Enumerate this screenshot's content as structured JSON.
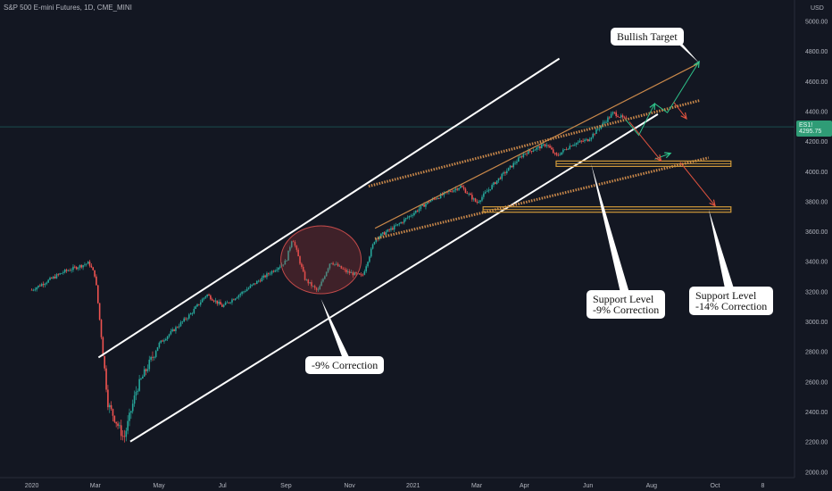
{
  "header": {
    "symbol_line": "S&P 500 E-mini Futures, 1D, CME_MINI",
    "currency": "USD",
    "last_price": "ES1! 4295.75"
  },
  "colors": {
    "background": "#131722",
    "up": "#26a69a",
    "down": "#ef5350",
    "channel": "#ffffff",
    "target_line": "#c9884a",
    "support": "#d19a3b",
    "bull_arrow": "#2ec28a",
    "bear_arrow": "#e0533f"
  },
  "annotations": {
    "bullish_target": "Bullish Target",
    "correction_past": "-9% Correction",
    "support1_line1": "Support Level",
    "support1_line2": "-9% Correction",
    "support2_line1": "Support Level",
    "support2_line2": "-14% Correction"
  },
  "chart_data": {
    "type": "candlestick",
    "title": "S&P 500 E-mini Futures, 1D, CME_MINI",
    "y_unit": "USD",
    "ylim": [
      1960,
      5140
    ],
    "yticks": [
      2000,
      2200,
      2400,
      2600,
      2800,
      3000,
      3200,
      3400,
      3600,
      3800,
      4000,
      4200,
      4400,
      4600,
      4800,
      5000
    ],
    "ytick_labels": [
      "2000.00",
      "2200.00",
      "2400.00",
      "2600.00",
      "2800.00",
      "3000.00",
      "3200.00",
      "3400.00",
      "3600.00",
      "3800.00",
      "4000.00",
      "4200.00",
      "4400.00",
      "4600.00",
      "4800.00",
      "5000.00"
    ],
    "x_axis_labels": [
      "2020",
      "Mar",
      "May",
      "Jul",
      "Sep",
      "Nov",
      "2021",
      "Mar",
      "Apr",
      "Jun",
      "Aug",
      "Oct",
      "8"
    ],
    "x_axis_positions": [
      0,
      2,
      4,
      6,
      8,
      10,
      12,
      14,
      15.5,
      17.5,
      19.5,
      21.5,
      23
    ],
    "price_path": [
      [
        0,
        3210
      ],
      [
        1,
        3330
      ],
      [
        1.8,
        3390
      ],
      [
        2,
        3300
      ],
      [
        2.4,
        2450
      ],
      [
        2.9,
        2220
      ],
      [
        3.3,
        2550
      ],
      [
        4,
        2850
      ],
      [
        5,
        3050
      ],
      [
        5.5,
        3180
      ],
      [
        6,
        3100
      ],
      [
        7,
        3250
      ],
      [
        8,
        3400
      ],
      [
        8.2,
        3560
      ],
      [
        8.6,
        3280
      ],
      [
        9,
        3200
      ],
      [
        9.4,
        3400
      ],
      [
        9.9,
        3330
      ],
      [
        10.4,
        3300
      ],
      [
        10.8,
        3550
      ],
      [
        11.5,
        3640
      ],
      [
        12.5,
        3800
      ],
      [
        13.5,
        3900
      ],
      [
        14,
        3790
      ],
      [
        14.6,
        3930
      ],
      [
        15.5,
        4120
      ],
      [
        16.2,
        4180
      ],
      [
        16.5,
        4100
      ],
      [
        17,
        4180
      ],
      [
        17.5,
        4210
      ],
      [
        18.3,
        4390
      ],
      [
        18.7,
        4340
      ]
    ],
    "last_price": 4295.75,
    "channel_upper": [
      [
        2.1,
        2760
      ],
      [
        16.6,
        4750
      ]
    ],
    "channel_lower": [
      [
        3.1,
        2200
      ],
      [
        19.7,
        4380
      ]
    ],
    "target_line": [
      [
        10.8,
        3620
      ],
      [
        21,
        4720
      ]
    ],
    "dotted_upper": [
      [
        10.6,
        3900
      ],
      [
        21,
        4470
      ]
    ],
    "dotted_lower": [
      [
        10.8,
        3550
      ],
      [
        21.3,
        4090
      ]
    ],
    "support_levels": [
      {
        "label": "Support Level -9% Correction",
        "value": 4050,
        "x_range": [
          16.5,
          22
        ]
      },
      {
        "label": "Support Level -14% Correction",
        "value": 3745,
        "x_range": [
          14.2,
          22
        ]
      }
    ],
    "correction_circle": {
      "center": [
        9.1,
        3410
      ],
      "label": "-9% Correction"
    },
    "bullish_target": {
      "value": 4720,
      "label": "Bullish Target"
    }
  }
}
